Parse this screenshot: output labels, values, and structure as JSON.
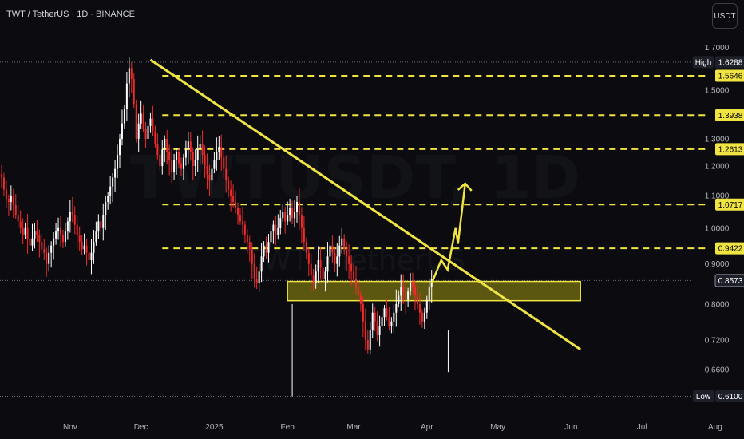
{
  "header": {
    "title": "TWT / TetherUS · 1D · BINANCE",
    "currency_button": "USDT"
  },
  "watermark": {
    "line1": "TWTUSDT, 1D",
    "line2": "TWT / TetherUS"
  },
  "colors": {
    "background": "#0c0c10",
    "candle_up": "#ffffff",
    "candle_down": "#ef2b2b",
    "trendline": "#f0e442",
    "level": "#f0e442",
    "zone_fill": "#6f6a10",
    "zone_stroke": "#f0e442",
    "label_yellow": "#f0e442",
    "label_dark": "#1e2029"
  },
  "chart_data": {
    "type": "candlestick",
    "y_scale": "log",
    "ylim": [
      0.58,
      1.78
    ],
    "y_ticks": [
      "1.7000",
      "1.5000",
      "1.3000",
      "1.2000",
      "1.1000",
      "1.0000",
      "0.9000",
      "0.8000",
      "0.7200",
      "0.6600"
    ],
    "x_ticks": [
      "Nov",
      "Dec",
      "2025",
      "Feb",
      "Mar",
      "Apr",
      "May",
      "Jun",
      "Jul",
      "Aug"
    ],
    "x_tick_dates": [
      "2024-11-01",
      "2024-12-01",
      "2025-01-01",
      "2025-02-01",
      "2025-03-01",
      "2025-04-01",
      "2025-05-01",
      "2025-06-01",
      "2025-07-01",
      "2025-08-01"
    ],
    "candles_start_date": "2024-10-03",
    "candles_close": [
      1.16,
      1.12,
      1.09,
      1.08,
      1.1,
      1.07,
      1.04,
      1.02,
      1.0,
      0.98,
      1.0,
      0.97,
      0.95,
      0.97,
      0.99,
      0.98,
      0.96,
      0.94,
      0.93,
      0.9,
      0.93,
      0.95,
      0.97,
      0.99,
      1.0,
      0.98,
      0.96,
      0.99,
      1.02,
      1.05,
      1.04,
      1.01,
      0.98,
      0.96,
      0.94,
      0.95,
      0.93,
      0.91,
      0.93,
      0.96,
      0.99,
      1.02,
      1.0,
      1.04,
      1.08,
      1.1,
      1.13,
      1.16,
      1.19,
      1.24,
      1.3,
      1.36,
      1.42,
      1.53,
      1.6,
      1.55,
      1.44,
      1.3,
      1.36,
      1.4,
      1.34,
      1.3,
      1.35,
      1.38,
      1.33,
      1.28,
      1.24,
      1.2,
      1.26,
      1.3,
      1.25,
      1.22,
      1.18,
      1.22,
      1.25,
      1.21,
      1.19,
      1.23,
      1.26,
      1.29,
      1.25,
      1.2,
      1.22,
      1.26,
      1.28,
      1.24,
      1.2,
      1.17,
      1.15,
      1.19,
      1.22,
      1.25,
      1.27,
      1.23,
      1.19,
      1.15,
      1.12,
      1.1,
      1.08,
      1.06,
      1.04,
      1.02,
      1.01,
      0.98,
      0.96,
      0.94,
      0.9,
      0.86,
      0.85,
      0.88,
      0.92,
      0.95,
      0.93,
      0.96,
      0.99,
      1.01,
      0.98,
      1.0,
      1.03,
      1.05,
      1.02,
      1.04,
      1.06,
      1.03,
      1.05,
      1.08,
      1.04,
      1.0,
      0.96,
      0.93,
      0.9,
      0.87,
      0.85,
      0.88,
      0.91,
      0.89,
      0.86,
      0.88,
      0.92,
      0.95,
      0.93,
      0.9,
      0.92,
      0.95,
      0.97,
      0.94,
      0.92,
      0.9,
      0.88,
      0.86,
      0.84,
      0.82,
      0.8,
      0.76,
      0.72,
      0.7,
      0.74,
      0.78,
      0.76,
      0.73,
      0.75,
      0.77,
      0.79,
      0.77,
      0.75,
      0.76,
      0.78,
      0.8,
      0.82,
      0.84,
      0.83,
      0.81,
      0.83,
      0.85,
      0.84,
      0.82,
      0.8,
      0.78,
      0.76,
      0.78,
      0.81,
      0.84,
      0.86
    ],
    "trendline": {
      "start_date": "2024-12-05",
      "start_price": 1.64,
      "end_date": "2025-06-05",
      "end_price": 0.7
    },
    "zone": {
      "start_date": "2025-02-01",
      "end_date": "2025-06-05",
      "top": 0.855,
      "bottom": 0.808
    },
    "projection": [
      [
        0.8,
        0.91
      ],
      [
        0.89,
        0.98
      ],
      [
        0.94,
        1.14
      ]
    ],
    "levels": [
      {
        "value": 1.5646,
        "label": "1.5646",
        "style": "dashed"
      },
      {
        "value": 1.3938,
        "label": "1.3938",
        "style": "dashed"
      },
      {
        "value": 1.2613,
        "label": "1.2613",
        "style": "dashed"
      },
      {
        "value": 1.0717,
        "label": "1.0717",
        "style": "dashed"
      },
      {
        "value": 0.9422,
        "label": "0.9422",
        "style": "dashed"
      }
    ],
    "high": {
      "value": 1.6288,
      "tag": "High",
      "label": "1.6288"
    },
    "low": {
      "value": 0.61,
      "tag": "Low",
      "label": "0.6100"
    },
    "current": {
      "value": 0.8573,
      "label": "0.8573"
    }
  }
}
